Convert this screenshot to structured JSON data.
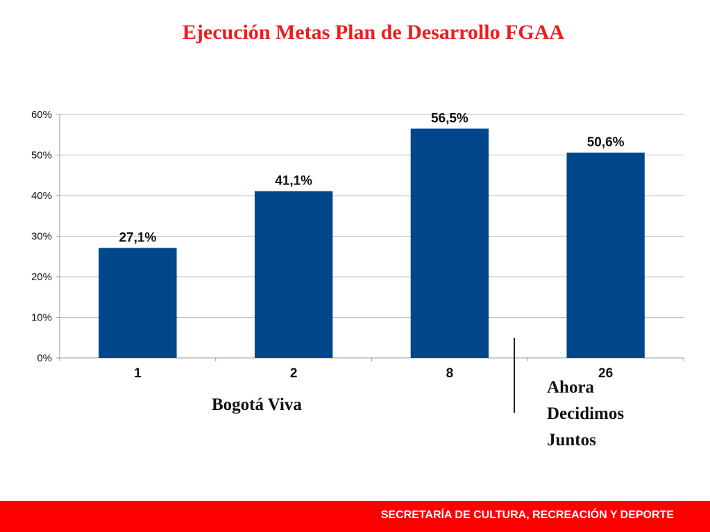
{
  "slide": {
    "title": "Ejecución Metas Plan de Desarrollo FGAA",
    "footer": "SECRETARÍA DE CULTURA, RECREACIÓN Y DEPORTE",
    "group_left": "Bogotá Viva",
    "group_right": [
      "Ahora",
      "Decidimos",
      "Juntos"
    ]
  },
  "colors": {
    "bar": "#00468b",
    "title": "#ee1c1c",
    "footer_bg": "#ff0000"
  },
  "chart_data": {
    "type": "bar",
    "categories": [
      "1",
      "2",
      "8",
      "26"
    ],
    "values": [
      27.1,
      41.1,
      56.5,
      50.6
    ],
    "data_labels": [
      "27,1%",
      "41,1%",
      "56,5%",
      "50,6%"
    ],
    "yticks": [
      "0%",
      "10%",
      "20%",
      "30%",
      "40%",
      "50%",
      "60%"
    ],
    "ylim": [
      0,
      60
    ],
    "title": "",
    "xlabel": "",
    "ylabel": "",
    "grid": true,
    "legend": "none"
  }
}
